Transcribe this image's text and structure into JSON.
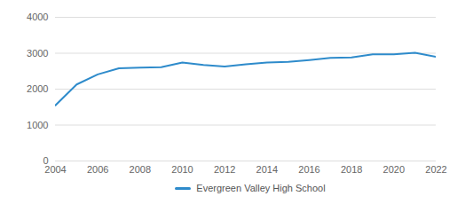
{
  "chart_data": {
    "type": "line",
    "x": [
      2004,
      2005,
      2006,
      2007,
      2008,
      2009,
      2010,
      2011,
      2012,
      2013,
      2014,
      2015,
      2016,
      2017,
      2018,
      2019,
      2020,
      2021,
      2022
    ],
    "series": [
      {
        "name": "Evergreen Valley High School",
        "color": "#2e8bcb",
        "values": [
          1550,
          2130,
          2410,
          2580,
          2600,
          2610,
          2740,
          2670,
          2630,
          2690,
          2740,
          2760,
          2810,
          2870,
          2880,
          2970,
          2970,
          3010,
          2900
        ]
      }
    ],
    "xlim": [
      2004,
      2022
    ],
    "xticks": [
      2004,
      2006,
      2008,
      2010,
      2012,
      2014,
      2016,
      2018,
      2020,
      2022
    ],
    "ylim": [
      0,
      4000
    ],
    "yticks": [
      0,
      1000,
      2000,
      3000,
      4000
    ],
    "grid": true,
    "legend": "bottom"
  }
}
